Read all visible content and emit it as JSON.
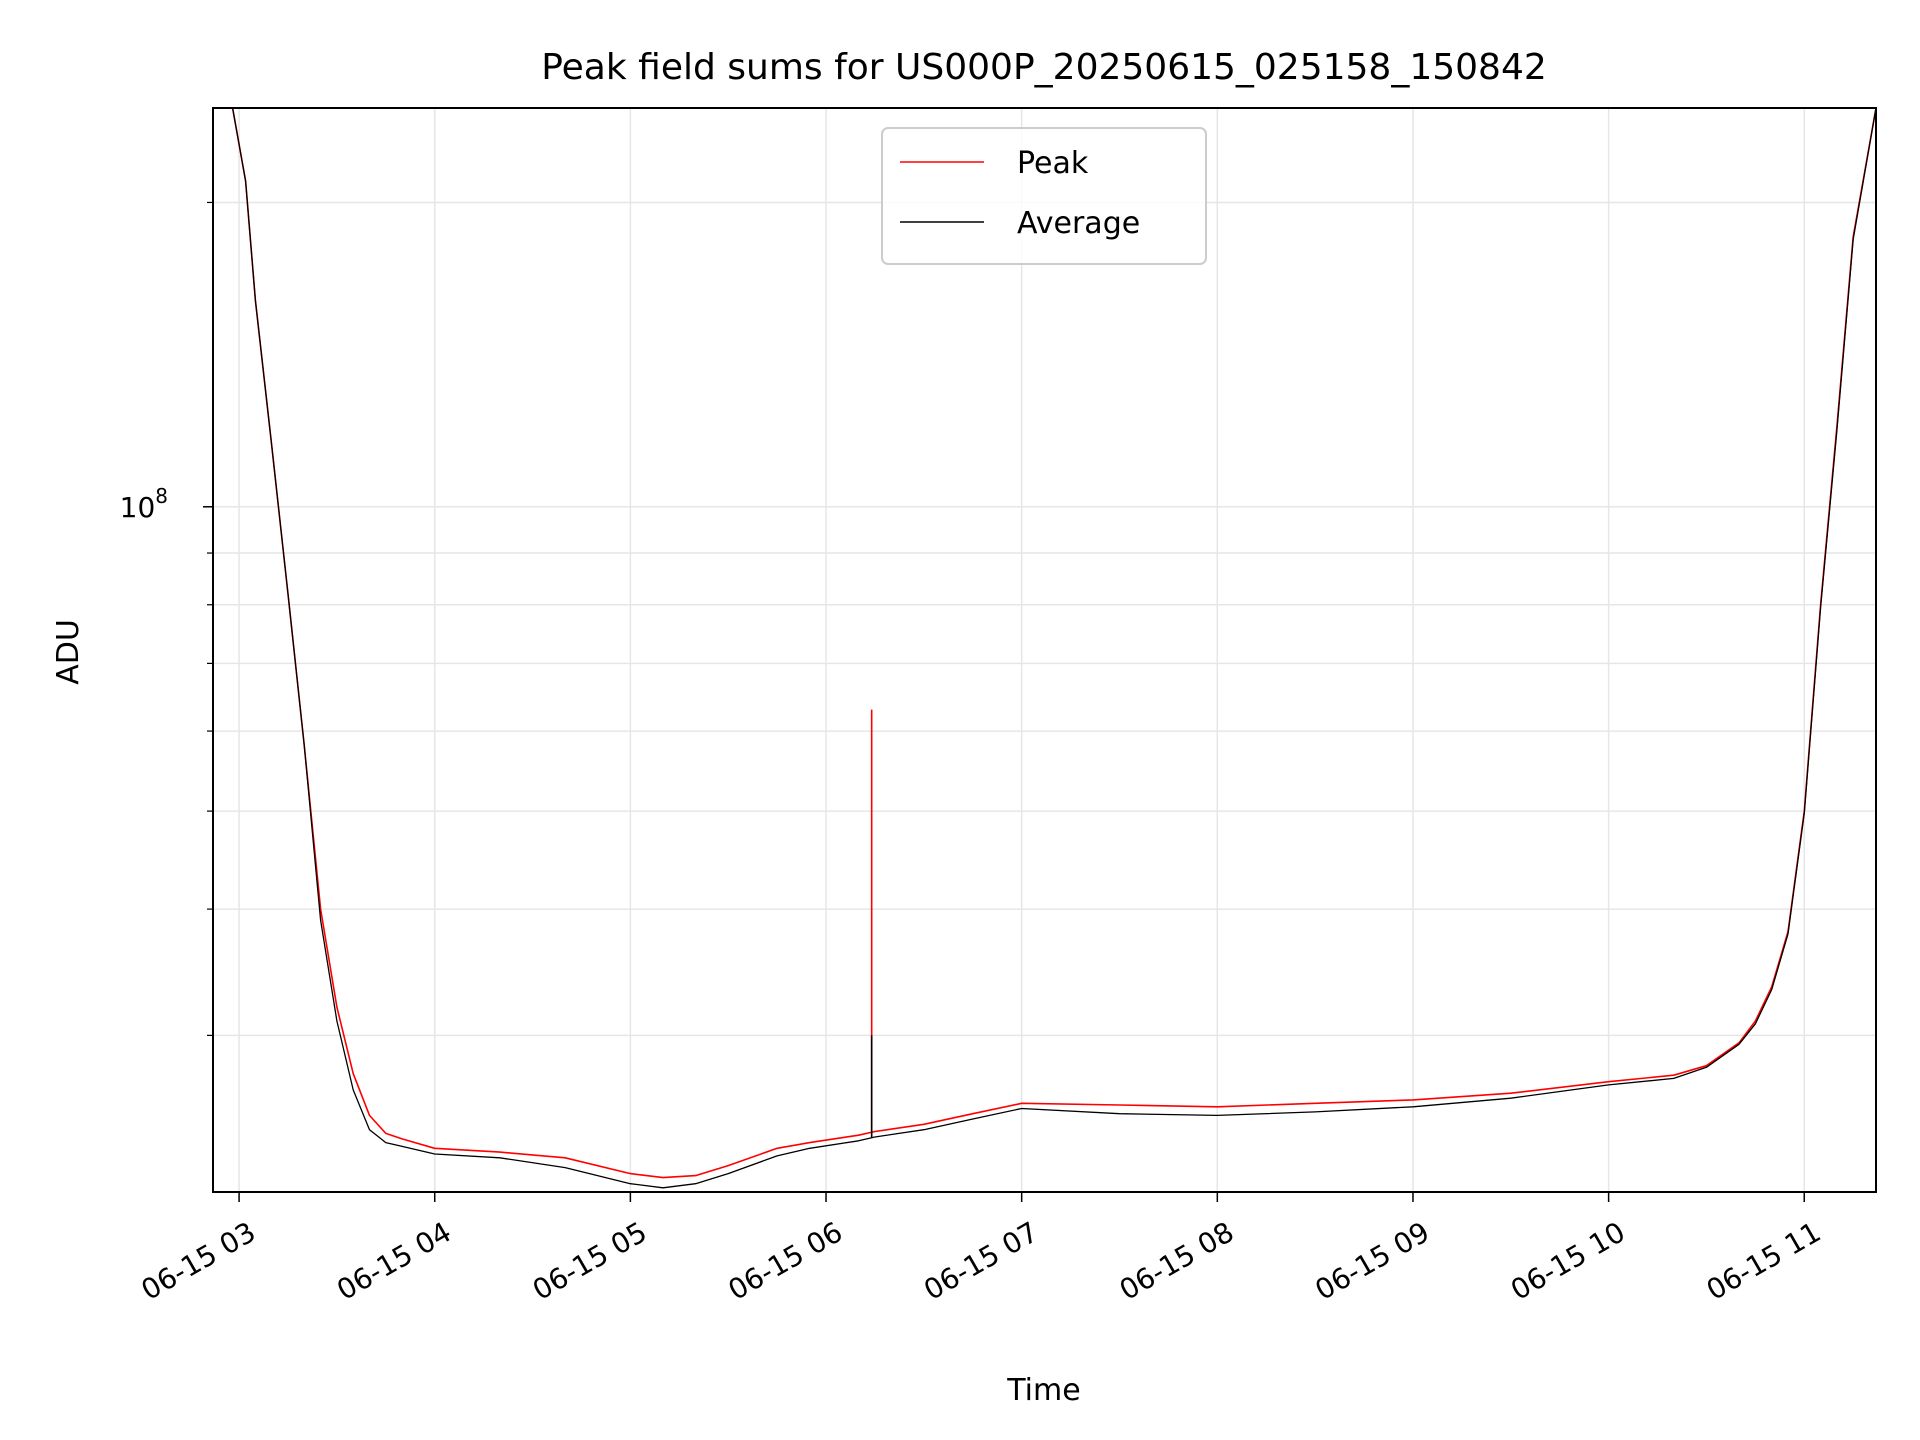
{
  "chart_data": {
    "type": "line",
    "title": "Peak field sums for US000P_20250615_025158_150842",
    "xlabel": "Time",
    "ylabel": "ADU",
    "x_axis": "time",
    "y_scale": "log",
    "xlim": [
      "06-15 02:52",
      "06-15 11:22"
    ],
    "ylim": [
      21000000,
      248000000
    ],
    "x_ticks": [
      "06-15 03",
      "06-15 04",
      "06-15 05",
      "06-15 06",
      "06-15 07",
      "06-15 08",
      "06-15 09",
      "06-15 10",
      "06-15 11"
    ],
    "y_tick_label": {
      "base": "10",
      "exponent": "8",
      "value": 100000000
    },
    "grid": true,
    "legend": "upper center",
    "series": [
      {
        "name": "Peak",
        "color": "#ff0000",
        "x": [
          "06-15 02:52",
          "06-15 02:58",
          "06-15 03:02",
          "06-15 03:05",
          "06-15 03:10",
          "06-15 03:15",
          "06-15 03:20",
          "06-15 03:25",
          "06-15 03:30",
          "06-15 03:35",
          "06-15 03:40",
          "06-15 03:45",
          "06-15 03:50",
          "06-15 04:00",
          "06-15 04:20",
          "06-15 04:40",
          "06-15 05:00",
          "06-15 05:10",
          "06-15 05:20",
          "06-15 05:30",
          "06-15 05:45",
          "06-15 05:55",
          "06-15 06:10",
          "06-15 06:15",
          "06-15 06:30",
          "06-15 06:45",
          "06-15 07:00",
          "06-15 07:30",
          "06-15 08:00",
          "06-15 08:30",
          "06-15 09:00",
          "06-15 09:30",
          "06-15 10:00",
          "06-15 10:20",
          "06-15 10:30",
          "06-15 10:40",
          "06-15 10:45",
          "06-15 10:50",
          "06-15 10:55",
          "06-15 11:00",
          "06-15 11:05",
          "06-15 11:10",
          "06-15 11:15",
          "06-15 11:22"
        ],
        "y": [
          248000000,
          248000000,
          210000000,
          160000000,
          115000000,
          82000000,
          58000000,
          40000000,
          32000000,
          27500000,
          25000000,
          24000000,
          23700000,
          23200000,
          23000000,
          22700000,
          21900000,
          21700000,
          21800000,
          22300000,
          23200000,
          23500000,
          23900000,
          24100000,
          24500000,
          25100000,
          25700000,
          25600000,
          25500000,
          25700000,
          25900000,
          26300000,
          27000000,
          27400000,
          28000000,
          29500000,
          31000000,
          33500000,
          38000000,
          50000000,
          80000000,
          120000000,
          185000000,
          248000000
        ]
      },
      {
        "name": "Average",
        "color": "#000000",
        "x": [
          "06-15 02:52",
          "06-15 02:58",
          "06-15 03:02",
          "06-15 03:05",
          "06-15 03:10",
          "06-15 03:15",
          "06-15 03:20",
          "06-15 03:25",
          "06-15 03:30",
          "06-15 03:35",
          "06-15 03:40",
          "06-15 03:45",
          "06-15 03:50",
          "06-15 04:00",
          "06-15 04:20",
          "06-15 04:40",
          "06-15 05:00",
          "06-15 05:10",
          "06-15 05:20",
          "06-15 05:30",
          "06-15 05:45",
          "06-15 05:55",
          "06-15 06:10",
          "06-15 06:15",
          "06-15 06:30",
          "06-15 06:45",
          "06-15 07:00",
          "06-15 07:30",
          "06-15 08:00",
          "06-15 08:30",
          "06-15 09:00",
          "06-15 09:30",
          "06-15 10:00",
          "06-15 10:20",
          "06-15 10:30",
          "06-15 10:40",
          "06-15 10:45",
          "06-15 10:50",
          "06-15 10:55",
          "06-15 11:00",
          "06-15 11:05",
          "06-15 11:10",
          "06-15 11:15",
          "06-15 11:22"
        ],
        "y": [
          248000000,
          248000000,
          210000000,
          160000000,
          115000000,
          82000000,
          58000000,
          39000000,
          31000000,
          26500000,
          24200000,
          23500000,
          23300000,
          22900000,
          22700000,
          22200000,
          21400000,
          21200000,
          21400000,
          21900000,
          22800000,
          23200000,
          23600000,
          23800000,
          24200000,
          24800000,
          25400000,
          25100000,
          25000000,
          25200000,
          25500000,
          26000000,
          26800000,
          27200000,
          27900000,
          29400000,
          30800000,
          33300000,
          37800000,
          49800000,
          79500000,
          119000000,
          184000000,
          248000000
        ]
      }
    ],
    "spikes": [
      {
        "series": "Peak",
        "x": "06-15 06:14",
        "y": 63000000
      },
      {
        "series": "Average",
        "x": "06-15 06:14",
        "y": 30000000
      }
    ]
  }
}
